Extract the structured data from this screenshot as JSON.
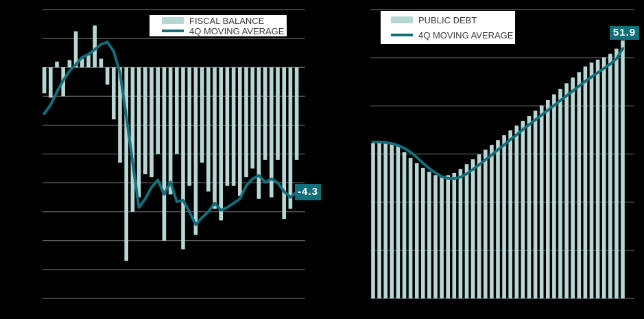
{
  "canvas": {
    "background": "#000000"
  },
  "colors": {
    "background": "#000000",
    "bar": "#b7d7d5",
    "line": "#136f7a",
    "gridline": "#7d7d7d",
    "legend_background": "#ffffff",
    "legend_text": "#3a3a3a",
    "end_label_text": "#ffffff"
  },
  "chart_data": [
    {
      "type": "bar",
      "title": "",
      "legend_position": "top-center",
      "grid": true,
      "ylim": [
        -8,
        2
      ],
      "ytick_step": 1,
      "end_label": "-4.3",
      "series": [
        {
          "name": "FISCAL BALANCE",
          "kind": "bar",
          "values": [
            -0.9,
            -1.05,
            0.2,
            -1.0,
            0.25,
            1.25,
            0.3,
            0.45,
            1.45,
            0.3,
            -0.6,
            -1.8,
            -3.3,
            -6.7,
            -5.0,
            -4.5,
            -3.7,
            -3.8,
            -3.0,
            -6.0,
            -4.4,
            -3.0,
            -6.3,
            -4.1,
            -5.8,
            -3.3,
            -4.3,
            -4.9,
            -5.3,
            -4.1,
            -4.1,
            -4.45,
            -3.8,
            -3.5,
            -4.55,
            -3.2,
            -4.5,
            -3.2,
            -5.25,
            -4.9,
            -3.2
          ]
        },
        {
          "name": "4Q MOVING AVERAGE",
          "kind": "line",
          "values": [
            -1.6,
            -1.3,
            -0.85,
            -0.45,
            -0.12,
            0.1,
            0.35,
            0.45,
            0.62,
            0.8,
            0.88,
            0.55,
            -0.2,
            -1.7,
            -3.3,
            -4.85,
            -4.55,
            -4.15,
            -3.9,
            -4.4,
            -3.97,
            -4.65,
            -4.6,
            -5.0,
            -5.45,
            -5.2,
            -5.0,
            -4.7,
            -4.95,
            -4.85,
            -4.7,
            -4.55,
            -4.1,
            -3.86,
            -3.74,
            -3.98,
            -3.86,
            -4.0,
            -4.3,
            -4.5,
            -4.3
          ]
        }
      ]
    },
    {
      "type": "bar",
      "title": "",
      "legend_position": "top-left",
      "grid": true,
      "ylim": [
        0,
        60
      ],
      "ytick_step": 10,
      "end_label": "51.9",
      "series": [
        {
          "name": "PUBLIC DEBT",
          "kind": "bar",
          "values": [
            32.3,
            32.25,
            32.15,
            32.0,
            31.6,
            30.4,
            29.2,
            28.1,
            27.1,
            26.3,
            25.6,
            25.35,
            25.6,
            26.1,
            26.9,
            27.9,
            28.9,
            29.9,
            30.9,
            31.9,
            32.9,
            33.9,
            34.9,
            35.9,
            36.9,
            37.9,
            39.0,
            40.1,
            41.2,
            42.4,
            43.5,
            44.7,
            45.9,
            47.0,
            48.2,
            49.0,
            49.6,
            50.1,
            50.8,
            51.9,
            53.6
          ]
        },
        {
          "name": "4Q MOVING AVERAGE",
          "kind": "line",
          "values": [
            32.5,
            32.5,
            32.4,
            32.2,
            31.8,
            31.2,
            30.4,
            29.3,
            28.1,
            27.0,
            26.1,
            25.3,
            24.95,
            24.9,
            25.2,
            25.9,
            26.8,
            27.8,
            28.8,
            29.8,
            30.9,
            31.9,
            33.0,
            34.0,
            35.1,
            36.1,
            37.1,
            38.1,
            39.1,
            40.1,
            41.1,
            42.1,
            43.1,
            44.1,
            45.1,
            46.0,
            46.9,
            47.8,
            48.7,
            49.8,
            51.9
          ]
        }
      ]
    }
  ]
}
